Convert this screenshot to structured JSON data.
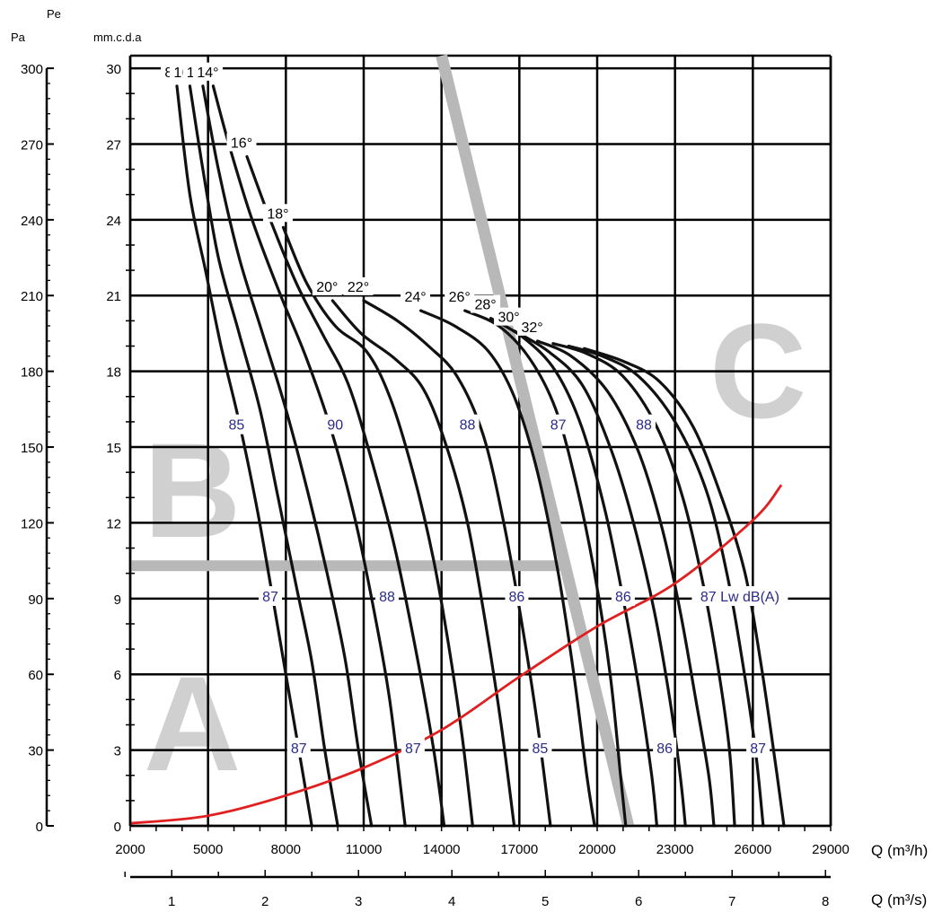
{
  "chart_data": {
    "type": "line",
    "title": "",
    "unit_pa_top": "Pe",
    "unit_pa": "Pa",
    "unit_mm": "mm.c.d.a",
    "xlabel_flow_h": "Q (m³/h)",
    "xlabel_flow_s": "Q (m³/s)",
    "x_flow_h": {
      "range": [
        2000,
        29000
      ],
      "ticks": [
        "2000",
        "5000",
        "8000",
        "11000",
        "14000",
        "17000",
        "20000",
        "23000",
        "26000",
        "29000"
      ]
    },
    "x_flow_s": {
      "ticks": [
        "1",
        "2",
        "3",
        "4",
        "5",
        "6",
        "7",
        "8"
      ],
      "values": [
        1,
        2,
        3,
        4,
        5,
        6,
        7,
        8
      ]
    },
    "y_mm": {
      "range": [
        0,
        30.5
      ],
      "ticks": [
        "0",
        "3",
        "6",
        "9",
        "12",
        "15",
        "18",
        "21",
        "24",
        "27",
        "30"
      ]
    },
    "y_pa": {
      "ticks": [
        "0",
        "30",
        "60",
        "90",
        "120",
        "150",
        "180",
        "210",
        "240",
        "270",
        "300"
      ],
      "values": [
        0,
        30,
        60,
        90,
        120,
        150,
        180,
        210,
        240,
        270,
        300
      ]
    },
    "grid": true,
    "zones": [
      "A",
      "B",
      "C"
    ],
    "angle_curves": [
      {
        "label": "8°",
        "points": [
          [
            3800,
            29.3
          ],
          [
            4300,
            25
          ],
          [
            4900,
            22
          ],
          [
            5500,
            19
          ],
          [
            6200,
            16
          ],
          [
            6900,
            12.5
          ],
          [
            7500,
            9
          ],
          [
            8000,
            6
          ],
          [
            8500,
            3
          ],
          [
            9000,
            0
          ]
        ]
      },
      {
        "label": "10°",
        "points": [
          [
            4300,
            29.3
          ],
          [
            4800,
            26
          ],
          [
            5400,
            22.5
          ],
          [
            6200,
            19.5
          ],
          [
            7000,
            16.5
          ],
          [
            7700,
            13
          ],
          [
            8400,
            9.5
          ],
          [
            9000,
            6.5
          ],
          [
            9500,
            3
          ],
          [
            10000,
            0
          ]
        ]
      },
      {
        "label": "12°",
        "points": [
          [
            4800,
            29.3
          ],
          [
            5400,
            26
          ],
          [
            6200,
            22.5
          ],
          [
            7100,
            19.5
          ],
          [
            8000,
            16.5
          ],
          [
            8900,
            13
          ],
          [
            9700,
            9.5
          ],
          [
            10300,
            6.5
          ],
          [
            10800,
            3
          ],
          [
            11300,
            0
          ]
        ]
      },
      {
        "label": "14°",
        "points": [
          [
            5200,
            29.3
          ],
          [
            5800,
            27
          ],
          [
            6700,
            24
          ],
          [
            7800,
            21
          ],
          [
            8800,
            18.5
          ],
          [
            9800,
            15.5
          ],
          [
            10700,
            12
          ],
          [
            11400,
            8.5
          ],
          [
            12000,
            5
          ],
          [
            12600,
            0
          ]
        ]
      },
      {
        "label": "16°",
        "points": [
          [
            6500,
            26.5
          ],
          [
            7400,
            24
          ],
          [
            8400,
            21.5
          ],
          [
            9400,
            19.5
          ],
          [
            10400,
            17.5
          ],
          [
            11300,
            14.5
          ],
          [
            12200,
            11
          ],
          [
            13000,
            7
          ],
          [
            13700,
            3
          ],
          [
            14100,
            0
          ]
        ]
      },
      {
        "label": "18°",
        "points": [
          [
            7900,
            23.7
          ],
          [
            8800,
            21.5
          ],
          [
            9900,
            19.8
          ],
          [
            11100,
            18.8
          ],
          [
            12000,
            17
          ],
          [
            12900,
            14
          ],
          [
            13700,
            10.5
          ],
          [
            14300,
            7
          ],
          [
            14800,
            3.5
          ],
          [
            15200,
            0
          ]
        ]
      },
      {
        "label": "20°",
        "points": [
          [
            9800,
            20.8
          ],
          [
            10900,
            19.5
          ],
          [
            12200,
            18.5
          ],
          [
            13300,
            17.3
          ],
          [
            14200,
            15
          ],
          [
            15000,
            12
          ],
          [
            15700,
            8
          ],
          [
            16300,
            4
          ],
          [
            16800,
            0
          ]
        ]
      },
      {
        "label": "22°",
        "points": [
          [
            11000,
            20.8
          ],
          [
            12300,
            20
          ],
          [
            13500,
            19
          ],
          [
            14600,
            17.8
          ],
          [
            15600,
            15.5
          ],
          [
            16400,
            12
          ],
          [
            17100,
            8
          ],
          [
            17700,
            4
          ],
          [
            18200,
            0
          ]
        ]
      },
      {
        "label": "24°",
        "points": [
          [
            13200,
            20.4
          ],
          [
            14500,
            19.8
          ],
          [
            15800,
            18.8
          ],
          [
            16800,
            17
          ],
          [
            17700,
            14
          ],
          [
            18500,
            10
          ],
          [
            19100,
            6
          ],
          [
            19600,
            2
          ],
          [
            19900,
            0
          ]
        ]
      },
      {
        "label": "26°",
        "points": [
          [
            14900,
            20.4
          ],
          [
            16200,
            19.8
          ],
          [
            17400,
            18.5
          ],
          [
            18400,
            16.5
          ],
          [
            19200,
            13.5
          ],
          [
            19900,
            10
          ],
          [
            20500,
            6
          ],
          [
            20900,
            2
          ],
          [
            21100,
            0
          ]
        ]
      },
      {
        "label": "28°",
        "points": [
          [
            15900,
            20.1
          ],
          [
            17200,
            19.3
          ],
          [
            18400,
            18
          ],
          [
            19400,
            15.8
          ],
          [
            20300,
            12.5
          ],
          [
            21000,
            9
          ],
          [
            21600,
            5.5
          ],
          [
            22100,
            2
          ],
          [
            22300,
            0
          ]
        ]
      },
      {
        "label": "30°",
        "points": [
          [
            16800,
            19.6
          ],
          [
            18100,
            18.8
          ],
          [
            19400,
            17.5
          ],
          [
            20500,
            15
          ],
          [
            21400,
            12
          ],
          [
            22200,
            8.5
          ],
          [
            22800,
            5
          ],
          [
            23200,
            2
          ],
          [
            23400,
            0
          ]
        ]
      },
      {
        "label": "32°",
        "points": [
          [
            17700,
            19.2
          ],
          [
            19000,
            18.6
          ],
          [
            20400,
            17.2
          ],
          [
            21600,
            14.8
          ],
          [
            22500,
            11.8
          ],
          [
            23200,
            8.5
          ],
          [
            23800,
            5
          ],
          [
            24300,
            2
          ],
          [
            24500,
            0
          ]
        ]
      },
      {
        "label": "",
        "points": [
          [
            18300,
            19.1
          ],
          [
            19600,
            18.7
          ],
          [
            21000,
            17.8
          ],
          [
            22300,
            15.8
          ],
          [
            23300,
            13
          ],
          [
            24100,
            9.5
          ],
          [
            24700,
            6
          ],
          [
            25100,
            3
          ],
          [
            25300,
            0
          ]
        ]
      },
      {
        "label": "",
        "points": [
          [
            18900,
            19
          ],
          [
            20200,
            18.6
          ],
          [
            21600,
            17.8
          ],
          [
            23000,
            16
          ],
          [
            24200,
            13.3
          ],
          [
            25000,
            10
          ],
          [
            25600,
            6.5
          ],
          [
            26100,
            3
          ],
          [
            26400,
            0
          ]
        ]
      },
      {
        "label": "",
        "points": [
          [
            19500,
            18.9
          ],
          [
            21000,
            18.4
          ],
          [
            22400,
            17.6
          ],
          [
            23700,
            15.8
          ],
          [
            24800,
            13
          ],
          [
            25700,
            10
          ],
          [
            26300,
            6.5
          ],
          [
            26800,
            3
          ],
          [
            27200,
            0
          ]
        ]
      }
    ],
    "system_curve": {
      "color": "#e02020",
      "points": [
        [
          2000,
          0.1
        ],
        [
          5000,
          0.4
        ],
        [
          8000,
          1.2
        ],
        [
          11000,
          2.3
        ],
        [
          14000,
          3.8
        ],
        [
          17000,
          5.9
        ],
        [
          20000,
          7.9
        ],
        [
          23000,
          9.6
        ],
        [
          26000,
          12.1
        ],
        [
          27100,
          13.5
        ]
      ]
    },
    "noise_labels": [
      {
        "text": "85",
        "x": 6100,
        "y": 15.9
      },
      {
        "text": "90",
        "x": 9900,
        "y": 15.9
      },
      {
        "text": "88",
        "x": 15000,
        "y": 15.9
      },
      {
        "text": "87",
        "x": 18500,
        "y": 15.9
      },
      {
        "text": "88",
        "x": 21800,
        "y": 15.9
      },
      {
        "text": "87",
        "x": 7400,
        "y": 9.1
      },
      {
        "text": "88",
        "x": 11900,
        "y": 9.1
      },
      {
        "text": "86",
        "x": 16900,
        "y": 9.1
      },
      {
        "text": "86",
        "x": 21000,
        "y": 9.1
      },
      {
        "text": "87 Lw dB(A)",
        "x": 25500,
        "y": 9.1
      },
      {
        "text": "87",
        "x": 8500,
        "y": 3.1
      },
      {
        "text": "87",
        "x": 12900,
        "y": 3.1
      },
      {
        "text": "85",
        "x": 17800,
        "y": 3.1
      },
      {
        "text": "86",
        "x": 22600,
        "y": 3.1
      },
      {
        "text": "87",
        "x": 26200,
        "y": 3.1
      }
    ],
    "zone_boundary_horizontal": {
      "y": 10.3,
      "x_range": [
        2000,
        18700
      ]
    },
    "zone_boundary_diagonal": {
      "points": [
        [
          14000,
          30.5
        ],
        [
          21200,
          0
        ]
      ]
    }
  }
}
